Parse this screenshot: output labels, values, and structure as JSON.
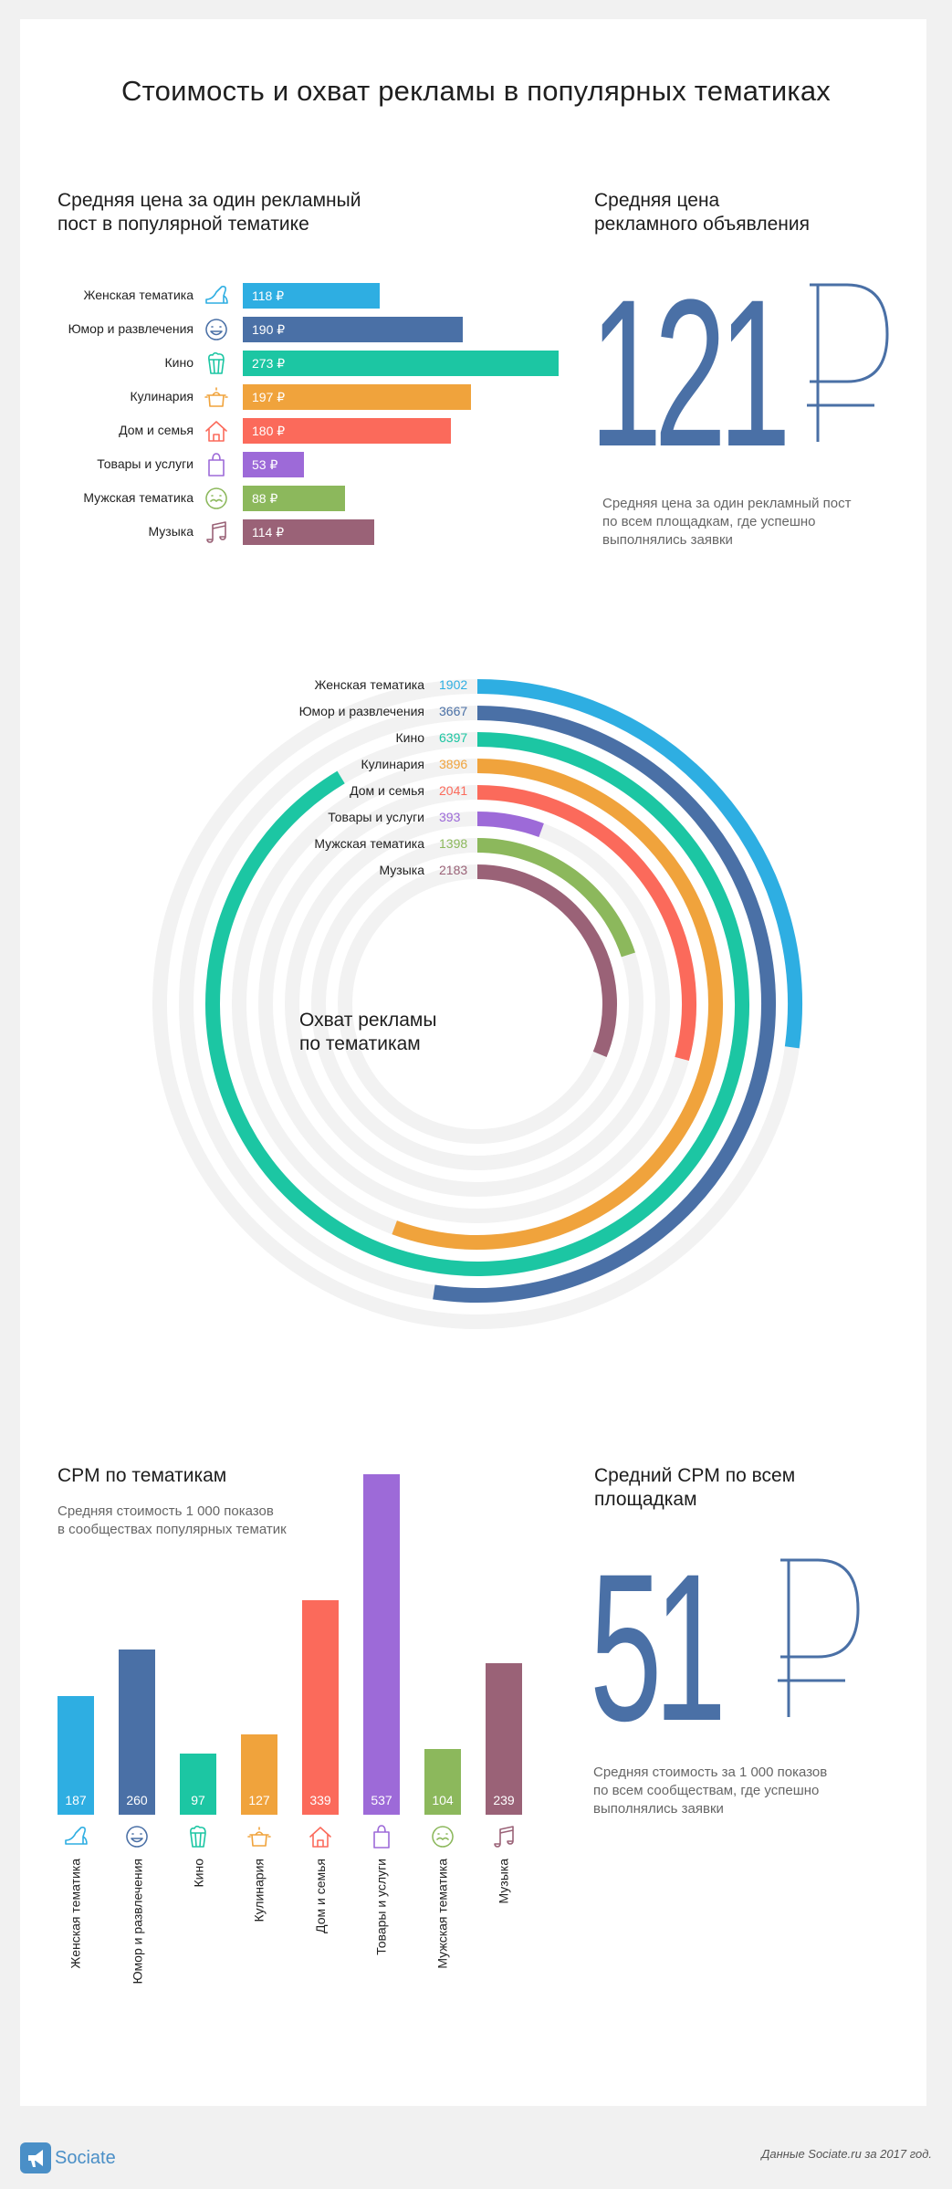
{
  "title": "Стоимость и охват рекламы в популярных тематиках",
  "colors": {
    "women": "#2eaee2",
    "humor": "#4a70a6",
    "cinema": "#1cc6a3",
    "cooking": "#f0a33c",
    "home": "#fb6a5b",
    "goods": "#9d6ad8",
    "men": "#8cb85c",
    "music": "#9a6277",
    "accent": "#4a70a6"
  },
  "price_section": {
    "title": "Средняя цена за один рекламный\nпост в популярной тематике",
    "rows": [
      {
        "label": "Женская тематика",
        "value_label": "118 ₽",
        "icon": "shoe-icon"
      },
      {
        "label": "Юмор и развлечения",
        "value_label": "190 ₽",
        "icon": "smiley-icon"
      },
      {
        "label": "Кино",
        "value_label": "273 ₽",
        "icon": "popcorn-icon"
      },
      {
        "label": "Кулинария",
        "value_label": "197 ₽",
        "icon": "pot-icon"
      },
      {
        "label": "Дом и семья",
        "value_label": "180 ₽",
        "icon": "house-icon"
      },
      {
        "label": "Товары и услуги",
        "value_label": "53 ₽",
        "icon": "shopping-bag-icon"
      },
      {
        "label": "Мужская тематика",
        "value_label": "88 ₽",
        "icon": "mustache-face-icon"
      },
      {
        "label": "Музыка",
        "value_label": "114 ₽",
        "icon": "music-note-icon"
      }
    ]
  },
  "avg_price": {
    "title": "Средняя цена\nрекламного объявления",
    "number": "121",
    "currency": "₽",
    "note": "Средняя цена за один рекламный пост\nпо всем площадкам, где успешно\nвыполнялись заявки"
  },
  "reach_section": {
    "title": "Охват рекламы\nпо тематикам",
    "rows": [
      {
        "label": "Женская тематика",
        "value_label": "1902"
      },
      {
        "label": "Юмор и развлечения",
        "value_label": "3667"
      },
      {
        "label": "Кино",
        "value_label": "6397"
      },
      {
        "label": "Кулинария",
        "value_label": "3896"
      },
      {
        "label": "Дом и семья",
        "value_label": "2041"
      },
      {
        "label": "Товары и услуги",
        "value_label": "393"
      },
      {
        "label": "Мужская тематика",
        "value_label": "1398"
      },
      {
        "label": "Музыка",
        "value_label": "2183"
      }
    ]
  },
  "cpm_section": {
    "title": "CPM по тематикам",
    "subtitle": "Средняя стоимость 1 000 показов\nв сообществах популярных тематик",
    "rows": [
      {
        "label": "Женская тематика",
        "value_label": "187"
      },
      {
        "label": "Юмор и развлечения",
        "value_label": "260"
      },
      {
        "label": "Кино",
        "value_label": "97"
      },
      {
        "label": "Кулинария",
        "value_label": "127"
      },
      {
        "label": "Дом и семья",
        "value_label": "339"
      },
      {
        "label": "Товары и услуги",
        "value_label": "537"
      },
      {
        "label": "Мужская тематика",
        "value_label": "104"
      },
      {
        "label": "Музыка",
        "value_label": "239"
      }
    ]
  },
  "avg_cpm": {
    "title": "Средний CPM по всем\nплощадкам",
    "number": "51",
    "currency": "₽",
    "note": "Средняя стоимость за 1 000 показов\nпо всем сообществам, где успешно\nвыполнялись заявки"
  },
  "footer": {
    "brand": "Sociate",
    "source": "Данные Sociate.ru за 2017 год."
  },
  "chart_data": [
    {
      "type": "bar",
      "orientation": "horizontal",
      "title": "Средняя цена за один рекламный пост в популярной тематике",
      "categories": [
        "Женская тематика",
        "Юмор и развлечения",
        "Кино",
        "Кулинария",
        "Дом и семья",
        "Товары и услуги",
        "Мужская тематика",
        "Музыка"
      ],
      "values": [
        118,
        190,
        273,
        197,
        180,
        53,
        88,
        114
      ],
      "unit": "₽"
    },
    {
      "type": "radial-bar",
      "title": "Охват рекламы по тематикам",
      "categories": [
        "Женская тематика",
        "Юмор и развлечения",
        "Кино",
        "Кулинария",
        "Дом и семья",
        "Товары и услуги",
        "Мужская тематика",
        "Музыка"
      ],
      "values": [
        1902,
        3667,
        6397,
        3896,
        2041,
        393,
        1398,
        2183
      ],
      "max": 7000
    },
    {
      "type": "bar",
      "orientation": "vertical",
      "title": "CPM по тематикам",
      "categories": [
        "Женская тематика",
        "Юмор и развлечения",
        "Кино",
        "Кулинария",
        "Дом и семья",
        "Товары и услуги",
        "Мужская тематика",
        "Музыка"
      ],
      "values": [
        187,
        260,
        97,
        127,
        339,
        537,
        104,
        239
      ],
      "ylim": [
        0,
        537
      ]
    }
  ]
}
